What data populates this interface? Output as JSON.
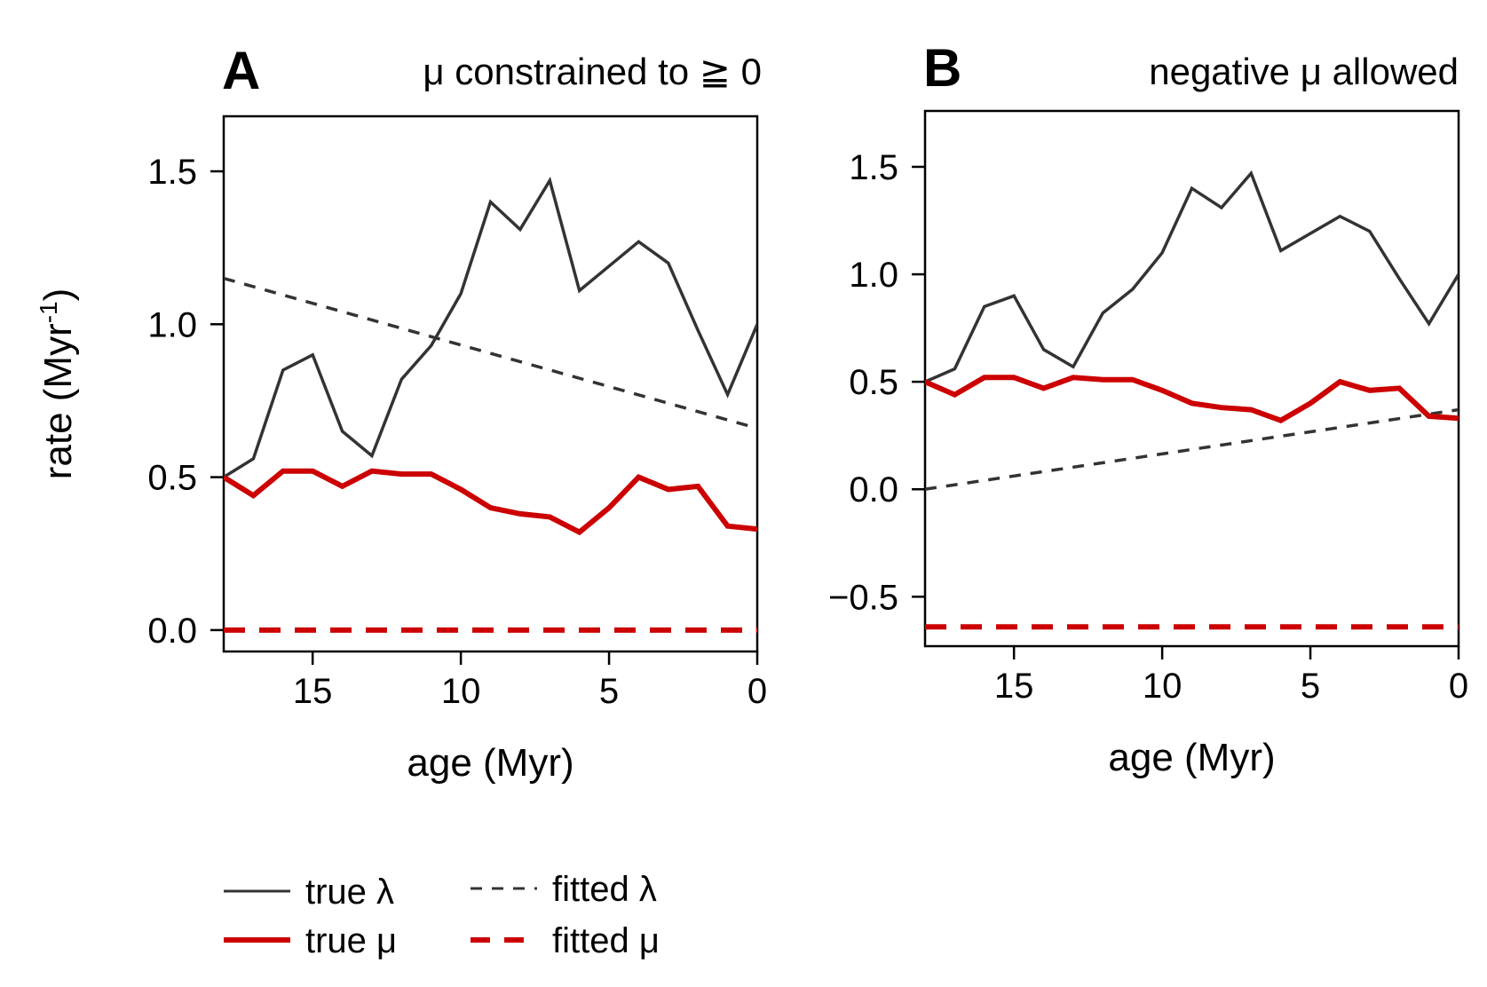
{
  "colors": {
    "lambda": "#333333",
    "mu": "#cc0000",
    "frame": "#000000"
  },
  "legend": [
    {
      "label": "true λ",
      "color": "#333333",
      "dash": "solid",
      "thick": false
    },
    {
      "label": "fitted λ",
      "color": "#333333",
      "dash": "dashed",
      "thick": false
    },
    {
      "label": "true μ",
      "color": "#cc0000",
      "dash": "solid",
      "thick": true
    },
    {
      "label": "fitted μ",
      "color": "#cc0000",
      "dash": "dashed",
      "thick": true
    }
  ],
  "chart_data": [
    {
      "type": "line",
      "letter": "A",
      "title": "μ constrained to ≧ 0",
      "xlabel": "age (Myr)",
      "ylabel": "rate (Myr",
      "ylabel_sup": "-1",
      "ylabel_end": ")",
      "xlim": [
        18,
        0
      ],
      "ylim": [
        -0.07,
        1.68
      ],
      "xticks": [
        15,
        10,
        5,
        0
      ],
      "yticks": [
        0.0,
        0.5,
        1.0,
        1.5
      ],
      "ytick_labels": [
        "0.0",
        "0.5",
        "1.0",
        "1.5"
      ],
      "series": [
        {
          "name": "true λ",
          "color": "#333333",
          "dash": "solid",
          "thick": false,
          "x": [
            18,
            17,
            16,
            15,
            14,
            13,
            12,
            11,
            10,
            9,
            8,
            7,
            6,
            5,
            4,
            3,
            2,
            1,
            0
          ],
          "y": [
            0.5,
            0.56,
            0.85,
            0.9,
            0.65,
            0.57,
            0.82,
            0.93,
            1.1,
            1.4,
            1.31,
            1.47,
            1.11,
            1.19,
            1.27,
            1.2,
            0.98,
            0.77,
            1.0
          ]
        },
        {
          "name": "fitted λ",
          "color": "#333333",
          "dash": "dashed",
          "thick": false,
          "x": [
            18,
            0
          ],
          "y": [
            1.15,
            0.66
          ]
        },
        {
          "name": "true μ",
          "color": "#cc0000",
          "dash": "solid",
          "thick": true,
          "x": [
            18,
            17,
            16,
            15,
            14,
            13,
            12,
            11,
            10,
            9,
            8,
            7,
            6,
            5,
            4,
            3,
            2,
            1,
            0
          ],
          "y": [
            0.5,
            0.44,
            0.52,
            0.52,
            0.47,
            0.52,
            0.51,
            0.51,
            0.46,
            0.4,
            0.38,
            0.37,
            0.32,
            0.4,
            0.5,
            0.46,
            0.47,
            0.34,
            0.33
          ]
        },
        {
          "name": "fitted μ",
          "color": "#cc0000",
          "dash": "dashed",
          "thick": true,
          "x": [
            18,
            0
          ],
          "y": [
            0.0,
            0.0
          ]
        }
      ]
    },
    {
      "type": "line",
      "letter": "B",
      "title": "negative μ allowed",
      "xlabel": "age (Myr)",
      "xlim": [
        18,
        0
      ],
      "ylim": [
        -0.73,
        1.76
      ],
      "xticks": [
        15,
        10,
        5,
        0
      ],
      "yticks": [
        -0.5,
        0.0,
        0.5,
        1.0,
        1.5
      ],
      "ytick_labels": [
        "−0.5",
        "0.0",
        "0.5",
        "1.0",
        "1.5"
      ],
      "series": [
        {
          "name": "true λ",
          "color": "#333333",
          "dash": "solid",
          "thick": false,
          "x": [
            18,
            17,
            16,
            15,
            14,
            13,
            12,
            11,
            10,
            9,
            8,
            7,
            6,
            5,
            4,
            3,
            2,
            1,
            0
          ],
          "y": [
            0.5,
            0.56,
            0.85,
            0.9,
            0.65,
            0.57,
            0.82,
            0.93,
            1.1,
            1.4,
            1.31,
            1.47,
            1.11,
            1.19,
            1.27,
            1.2,
            0.98,
            0.77,
            1.0
          ]
        },
        {
          "name": "fitted λ",
          "color": "#333333",
          "dash": "dashed",
          "thick": false,
          "x": [
            18,
            0
          ],
          "y": [
            0.0,
            0.37
          ]
        },
        {
          "name": "true μ",
          "color": "#cc0000",
          "dash": "solid",
          "thick": true,
          "x": [
            18,
            17,
            16,
            15,
            14,
            13,
            12,
            11,
            10,
            9,
            8,
            7,
            6,
            5,
            4,
            3,
            2,
            1,
            0
          ],
          "y": [
            0.5,
            0.44,
            0.52,
            0.52,
            0.47,
            0.52,
            0.51,
            0.51,
            0.46,
            0.4,
            0.38,
            0.37,
            0.32,
            0.4,
            0.5,
            0.46,
            0.47,
            0.34,
            0.33
          ]
        },
        {
          "name": "fitted μ",
          "color": "#cc0000",
          "dash": "dashed",
          "thick": true,
          "x": [
            18,
            0
          ],
          "y": [
            -0.64,
            -0.64
          ]
        }
      ]
    }
  ]
}
